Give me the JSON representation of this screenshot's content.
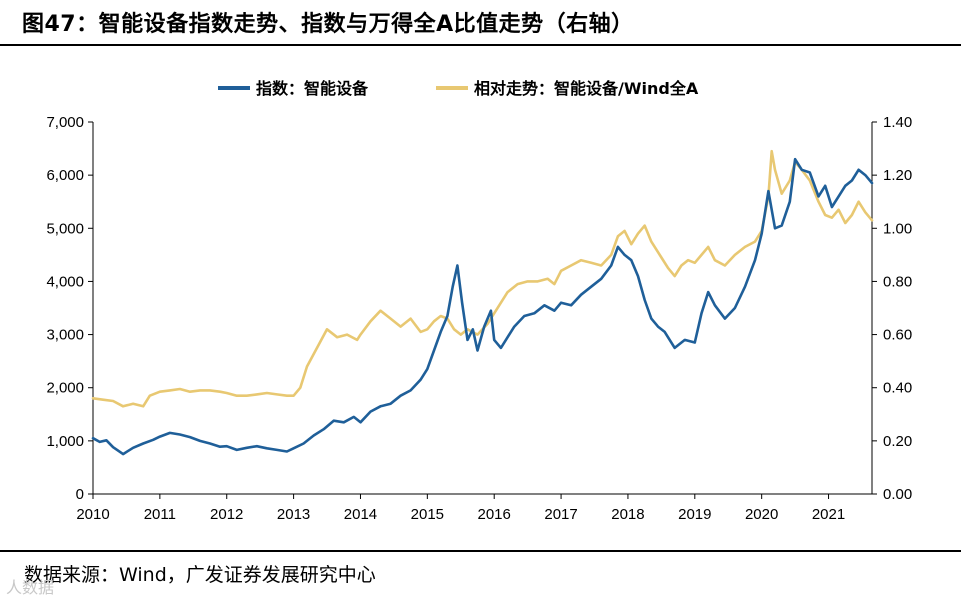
{
  "header": {
    "title": "图47：智能设备指数走势、指数与万得全A比值走势（右轴）"
  },
  "footer": {
    "source": "数据来源：Wind，广发证券发展研究中心",
    "watermark": "人数据"
  },
  "colors": {
    "index_line": "#1f5f99",
    "ratio_line": "#e8c872",
    "axis": "#000000"
  },
  "chart_data": {
    "type": "line",
    "title": "",
    "xlabel": "",
    "ylabel_left": "",
    "ylabel_right": "",
    "x_tick_labels": [
      "2010",
      "2011",
      "2012",
      "2013",
      "2014",
      "2015",
      "2016",
      "2017",
      "2018",
      "2019",
      "2020",
      "2021"
    ],
    "x_range": [
      2010.0,
      2021.65
    ],
    "left_axis": {
      "range": [
        0,
        7000
      ],
      "ticks": [
        0,
        1000,
        2000,
        3000,
        4000,
        5000,
        6000,
        7000
      ],
      "tick_labels": [
        "0",
        "1,000",
        "2,000",
        "3,000",
        "4,000",
        "5,000",
        "6,000",
        "7,000"
      ]
    },
    "right_axis": {
      "range": [
        0,
        1.4
      ],
      "ticks": [
        0,
        0.2,
        0.4,
        0.6,
        0.8,
        1.0,
        1.2,
        1.4
      ],
      "tick_labels": [
        "0.00",
        "0.20",
        "0.40",
        "0.60",
        "0.80",
        "1.00",
        "1.20",
        "1.40"
      ]
    },
    "legend_position": "top-center",
    "series": [
      {
        "name": "指数：智能设备",
        "axis": "left",
        "points": [
          [
            2010.0,
            1050
          ],
          [
            2010.1,
            980
          ],
          [
            2010.2,
            1010
          ],
          [
            2010.3,
            880
          ],
          [
            2010.45,
            750
          ],
          [
            2010.6,
            870
          ],
          [
            2010.75,
            950
          ],
          [
            2010.9,
            1020
          ],
          [
            2011.0,
            1080
          ],
          [
            2011.15,
            1150
          ],
          [
            2011.3,
            1120
          ],
          [
            2011.45,
            1070
          ],
          [
            2011.6,
            1000
          ],
          [
            2011.75,
            950
          ],
          [
            2011.9,
            890
          ],
          [
            2012.0,
            900
          ],
          [
            2012.15,
            830
          ],
          [
            2012.3,
            870
          ],
          [
            2012.45,
            900
          ],
          [
            2012.6,
            860
          ],
          [
            2012.75,
            830
          ],
          [
            2012.9,
            800
          ],
          [
            2013.0,
            860
          ],
          [
            2013.15,
            950
          ],
          [
            2013.3,
            1100
          ],
          [
            2013.45,
            1220
          ],
          [
            2013.6,
            1380
          ],
          [
            2013.75,
            1350
          ],
          [
            2013.9,
            1450
          ],
          [
            2014.0,
            1350
          ],
          [
            2014.15,
            1550
          ],
          [
            2014.3,
            1650
          ],
          [
            2014.45,
            1700
          ],
          [
            2014.6,
            1850
          ],
          [
            2014.75,
            1950
          ],
          [
            2014.9,
            2150
          ],
          [
            2015.0,
            2350
          ],
          [
            2015.1,
            2700
          ],
          [
            2015.2,
            3050
          ],
          [
            2015.3,
            3350
          ],
          [
            2015.38,
            3900
          ],
          [
            2015.45,
            4300
          ],
          [
            2015.52,
            3600
          ],
          [
            2015.6,
            2900
          ],
          [
            2015.68,
            3100
          ],
          [
            2015.75,
            2700
          ],
          [
            2015.85,
            3150
          ],
          [
            2015.95,
            3450
          ],
          [
            2016.0,
            2900
          ],
          [
            2016.1,
            2750
          ],
          [
            2016.2,
            2950
          ],
          [
            2016.3,
            3150
          ],
          [
            2016.45,
            3350
          ],
          [
            2016.6,
            3400
          ],
          [
            2016.75,
            3550
          ],
          [
            2016.9,
            3450
          ],
          [
            2017.0,
            3600
          ],
          [
            2017.15,
            3550
          ],
          [
            2017.3,
            3750
          ],
          [
            2017.45,
            3900
          ],
          [
            2017.6,
            4050
          ],
          [
            2017.75,
            4300
          ],
          [
            2017.85,
            4650
          ],
          [
            2017.95,
            4500
          ],
          [
            2018.05,
            4400
          ],
          [
            2018.15,
            4100
          ],
          [
            2018.25,
            3650
          ],
          [
            2018.35,
            3300
          ],
          [
            2018.45,
            3150
          ],
          [
            2018.55,
            3050
          ],
          [
            2018.7,
            2750
          ],
          [
            2018.85,
            2900
          ],
          [
            2019.0,
            2850
          ],
          [
            2019.1,
            3400
          ],
          [
            2019.2,
            3800
          ],
          [
            2019.3,
            3550
          ],
          [
            2019.45,
            3300
          ],
          [
            2019.6,
            3500
          ],
          [
            2019.75,
            3900
          ],
          [
            2019.9,
            4400
          ],
          [
            2020.0,
            4900
          ],
          [
            2020.1,
            5700
          ],
          [
            2020.2,
            5000
          ],
          [
            2020.3,
            5050
          ],
          [
            2020.42,
            5500
          ],
          [
            2020.5,
            6300
          ],
          [
            2020.6,
            6100
          ],
          [
            2020.72,
            6050
          ],
          [
            2020.85,
            5600
          ],
          [
            2020.95,
            5800
          ],
          [
            2021.05,
            5400
          ],
          [
            2021.15,
            5600
          ],
          [
            2021.25,
            5800
          ],
          [
            2021.35,
            5900
          ],
          [
            2021.45,
            6100
          ],
          [
            2021.55,
            6000
          ],
          [
            2021.65,
            5850
          ]
        ]
      },
      {
        "name": "相对走势：智能设备/Wind全A",
        "axis": "right",
        "points": [
          [
            2010.0,
            0.36
          ],
          [
            2010.15,
            0.355
          ],
          [
            2010.3,
            0.35
          ],
          [
            2010.45,
            0.33
          ],
          [
            2010.6,
            0.34
          ],
          [
            2010.75,
            0.33
          ],
          [
            2010.85,
            0.37
          ],
          [
            2011.0,
            0.385
          ],
          [
            2011.15,
            0.39
          ],
          [
            2011.3,
            0.395
          ],
          [
            2011.45,
            0.385
          ],
          [
            2011.6,
            0.39
          ],
          [
            2011.75,
            0.39
          ],
          [
            2011.9,
            0.385
          ],
          [
            2012.0,
            0.38
          ],
          [
            2012.15,
            0.37
          ],
          [
            2012.3,
            0.37
          ],
          [
            2012.45,
            0.375
          ],
          [
            2012.6,
            0.38
          ],
          [
            2012.75,
            0.375
          ],
          [
            2012.9,
            0.37
          ],
          [
            2013.0,
            0.37
          ],
          [
            2013.1,
            0.4
          ],
          [
            2013.2,
            0.48
          ],
          [
            2013.35,
            0.55
          ],
          [
            2013.5,
            0.62
          ],
          [
            2013.65,
            0.59
          ],
          [
            2013.8,
            0.6
          ],
          [
            2013.95,
            0.58
          ],
          [
            2014.0,
            0.6
          ],
          [
            2014.15,
            0.65
          ],
          [
            2014.3,
            0.69
          ],
          [
            2014.45,
            0.66
          ],
          [
            2014.6,
            0.63
          ],
          [
            2014.75,
            0.66
          ],
          [
            2014.9,
            0.61
          ],
          [
            2015.0,
            0.62
          ],
          [
            2015.1,
            0.65
          ],
          [
            2015.2,
            0.67
          ],
          [
            2015.3,
            0.66
          ],
          [
            2015.4,
            0.62
          ],
          [
            2015.5,
            0.6
          ],
          [
            2015.6,
            0.62
          ],
          [
            2015.75,
            0.6
          ],
          [
            2015.9,
            0.64
          ],
          [
            2016.0,
            0.68
          ],
          [
            2016.1,
            0.72
          ],
          [
            2016.2,
            0.76
          ],
          [
            2016.35,
            0.79
          ],
          [
            2016.5,
            0.8
          ],
          [
            2016.65,
            0.8
          ],
          [
            2016.8,
            0.81
          ],
          [
            2016.9,
            0.79
          ],
          [
            2017.0,
            0.84
          ],
          [
            2017.15,
            0.86
          ],
          [
            2017.3,
            0.88
          ],
          [
            2017.45,
            0.87
          ],
          [
            2017.6,
            0.86
          ],
          [
            2017.75,
            0.9
          ],
          [
            2017.85,
            0.97
          ],
          [
            2017.95,
            0.99
          ],
          [
            2018.05,
            0.94
          ],
          [
            2018.15,
            0.98
          ],
          [
            2018.25,
            1.01
          ],
          [
            2018.35,
            0.95
          ],
          [
            2018.5,
            0.89
          ],
          [
            2018.6,
            0.85
          ],
          [
            2018.7,
            0.82
          ],
          [
            2018.8,
            0.86
          ],
          [
            2018.9,
            0.88
          ],
          [
            2019.0,
            0.87
          ],
          [
            2019.1,
            0.9
          ],
          [
            2019.2,
            0.93
          ],
          [
            2019.3,
            0.88
          ],
          [
            2019.45,
            0.86
          ],
          [
            2019.6,
            0.9
          ],
          [
            2019.75,
            0.93
          ],
          [
            2019.9,
            0.95
          ],
          [
            2020.0,
            0.99
          ],
          [
            2020.1,
            1.12
          ],
          [
            2020.15,
            1.29
          ],
          [
            2020.2,
            1.22
          ],
          [
            2020.3,
            1.13
          ],
          [
            2020.42,
            1.18
          ],
          [
            2020.5,
            1.25
          ],
          [
            2020.6,
            1.22
          ],
          [
            2020.72,
            1.18
          ],
          [
            2020.85,
            1.1
          ],
          [
            2020.95,
            1.05
          ],
          [
            2021.05,
            1.04
          ],
          [
            2021.15,
            1.07
          ],
          [
            2021.25,
            1.02
          ],
          [
            2021.35,
            1.05
          ],
          [
            2021.45,
            1.1
          ],
          [
            2021.55,
            1.06
          ],
          [
            2021.65,
            1.03
          ]
        ]
      }
    ]
  }
}
